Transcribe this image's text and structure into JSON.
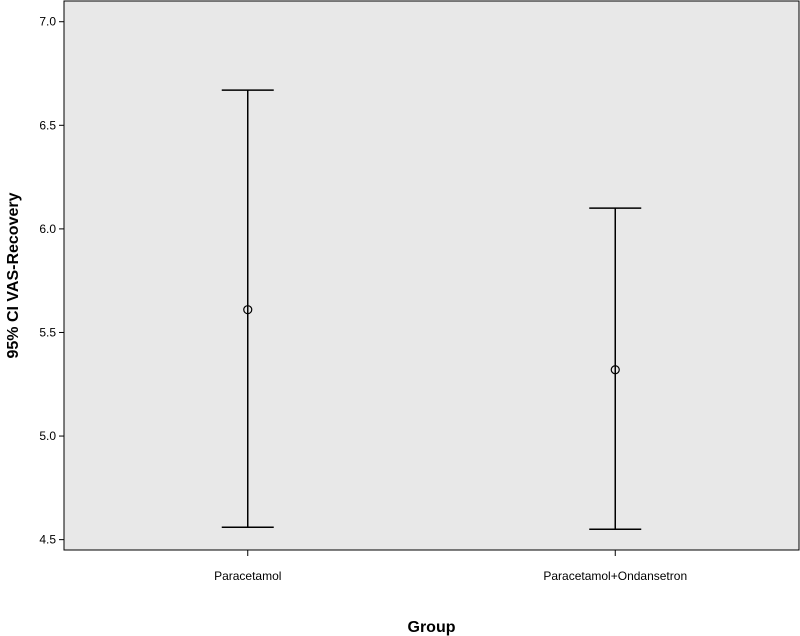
{
  "chart_data": {
    "type": "errorbar",
    "xlabel": "Group",
    "ylabel": "95% CI VAS-Recovery",
    "ylim": [
      4.45,
      7.1
    ],
    "yticks": [
      "4.5",
      "5.0",
      "5.5",
      "6.0",
      "6.5",
      "7.0"
    ],
    "categories": [
      "Paracetamol",
      "Paracetamol+Ondansetron"
    ],
    "points": [
      {
        "category": "Paracetamol",
        "mean": 5.61,
        "lower": 4.56,
        "upper": 6.67
      },
      {
        "category": "Paracetamol+Ondansetron",
        "mean": 5.32,
        "lower": 4.55,
        "upper": 6.1
      }
    ],
    "colors": {
      "plot_background": "#e8e8e8",
      "marks": "#000000"
    }
  }
}
